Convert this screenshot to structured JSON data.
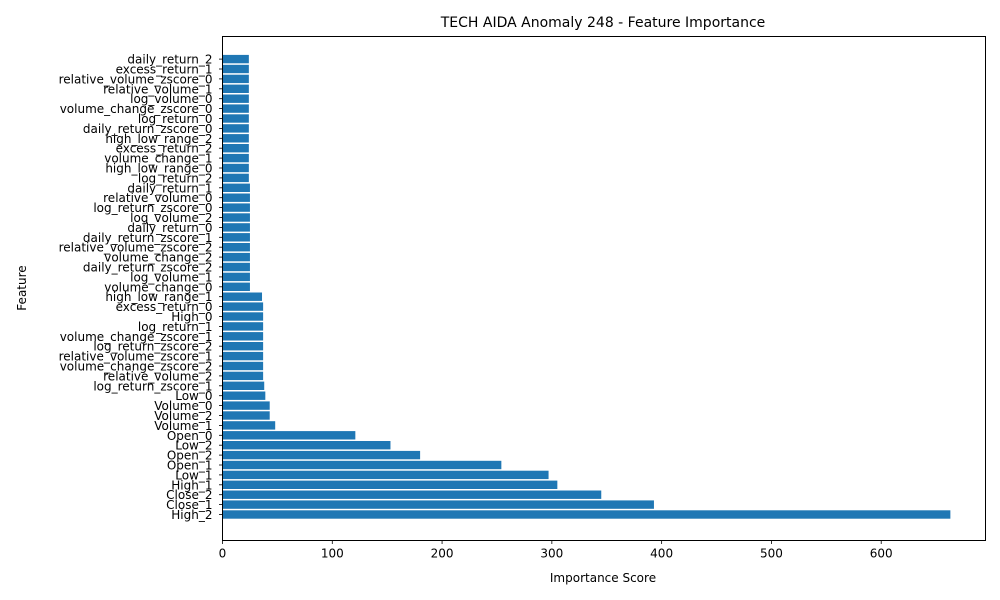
{
  "chart_data": {
    "type": "bar",
    "orientation": "horizontal",
    "title": "TECH AIDA Anomaly 248 - Feature Importance",
    "xlabel": "Importance Score",
    "ylabel": "Feature",
    "xlim": [
      0,
      695
    ],
    "xticks": [
      0,
      100,
      200,
      300,
      400,
      500,
      600
    ],
    "grid": false,
    "bar_color": "#1f77b4",
    "categories": [
      "High_2",
      "Close_1",
      "Close_2",
      "High_1",
      "Low_1",
      "Open_1",
      "Open_2",
      "Low_2",
      "Open_0",
      "Volume_1",
      "Volume_2",
      "Volume_0",
      "Low_0",
      "log_return_zscore_1",
      "relative_volume_2",
      "volume_change_zscore_2",
      "relative_volume_zscore_1",
      "log_return_zscore_2",
      "volume_change_zscore_1",
      "log_return_1",
      "High_0",
      "excess_return_0",
      "high_low_range_1",
      "volume_change_0",
      "log_volume_1",
      "daily_return_zscore_2",
      "volume_change_2",
      "relative_volume_zscore_2",
      "daily_return_zscore_1",
      "daily_return_0",
      "log_volume_2",
      "log_return_zscore_0",
      "relative_volume_0",
      "daily_return_1",
      "log_return_2",
      "high_low_range_0",
      "volume_change_1",
      "excess_return_2",
      "high_low_range_2",
      "daily_return_zscore_0",
      "log_return_0",
      "volume_change_zscore_0",
      "log_volume_0",
      "relative_volume_1",
      "relative_volume_zscore_0",
      "excess_return_1",
      "daily_return_2"
    ],
    "values": [
      663,
      393,
      345,
      305,
      297,
      254,
      180,
      153,
      121,
      48,
      43,
      43,
      39,
      38,
      37,
      37,
      37,
      37,
      37,
      37,
      37,
      37,
      36,
      25,
      25,
      25,
      25,
      25,
      25,
      25,
      25,
      25,
      25,
      25,
      24,
      24,
      24,
      24,
      24,
      24,
      24,
      24,
      24,
      24,
      24,
      24,
      24
    ]
  }
}
